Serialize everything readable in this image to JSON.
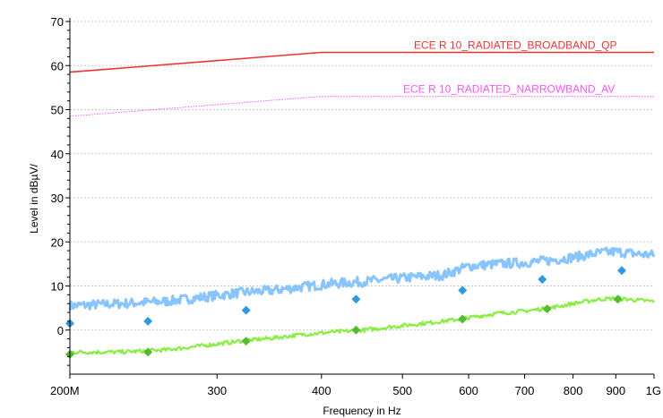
{
  "chart_data": {
    "type": "line",
    "xlabel": "Frequency in Hz",
    "ylabel": "Level in dBµV/",
    "xscale": "log",
    "xlim": [
      200000000,
      1000000000
    ],
    "ylim": [
      -10,
      70
    ],
    "x_ticks": [
      {
        "value": 200000000,
        "label": "200M"
      },
      {
        "value": 300000000,
        "label": "300"
      },
      {
        "value": 400000000,
        "label": "400"
      },
      {
        "value": 500000000,
        "label": "500"
      },
      {
        "value": 600000000,
        "label": "600"
      },
      {
        "value": 700000000,
        "label": "700"
      },
      {
        "value": 800000000,
        "label": "800"
      },
      {
        "value": 900000000,
        "label": "900"
      },
      {
        "value": 1000000000,
        "label": "1G"
      }
    ],
    "y_ticks": [
      {
        "value": 0,
        "label": "0"
      },
      {
        "value": 10,
        "label": "10"
      },
      {
        "value": 20,
        "label": "20"
      },
      {
        "value": 30,
        "label": "30"
      },
      {
        "value": 40,
        "label": "40"
      },
      {
        "value": 50,
        "label": "50"
      },
      {
        "value": 60,
        "label": "60"
      },
      {
        "value": 70,
        "label": "70"
      }
    ],
    "grid": "horizontal-dashed",
    "series": [
      {
        "name": "ECE R 10_RADIATED_BROADBAND_QP",
        "kind": "limit",
        "color": "#ee3333",
        "dashed": false,
        "x": [
          200000000,
          400000000,
          1000000000
        ],
        "y": [
          58.5,
          63,
          63
        ]
      },
      {
        "name": "ECE R 10_RADIATED_NARROWBAND_AV",
        "kind": "limit",
        "color": "#ff55ff",
        "dashed": true,
        "x": [
          200000000,
          400000000,
          1000000000
        ],
        "y": [
          48.5,
          53,
          53
        ]
      },
      {
        "kind": "trace",
        "color": "#88c4ff",
        "x": [
          200000000,
          230000000,
          260000000,
          290000000,
          320000000,
          350000000,
          380000000,
          410000000,
          450000000,
          500000000,
          560000000,
          600000000,
          650000000,
          700000000,
          750000000,
          800000000,
          860000000,
          900000000,
          950000000,
          1000000000
        ],
        "y": [
          5.5,
          6,
          6.5,
          7.5,
          8.5,
          9,
          9.8,
          10.5,
          11,
          11.8,
          12.5,
          14.5,
          15,
          15.3,
          15.8,
          16.5,
          17.5,
          17.8,
          17.3,
          17
        ]
      },
      {
        "kind": "trace",
        "color": "#88ee44",
        "x": [
          200000000,
          230000000,
          260000000,
          290000000,
          320000000,
          350000000,
          380000000,
          410000000,
          450000000,
          500000000,
          560000000,
          600000000,
          650000000,
          700000000,
          750000000,
          800000000,
          860000000,
          900000000,
          950000000,
          1000000000
        ],
        "y": [
          -5,
          -5,
          -4.5,
          -3.5,
          -2.5,
          -1.8,
          -1,
          -0.5,
          0,
          1,
          2,
          2.8,
          3.8,
          4.3,
          5,
          6,
          7,
          7.2,
          6.8,
          6.5
        ]
      },
      {
        "kind": "markers-qp",
        "marker": "diamond",
        "color": "#3399dd",
        "x": [
          200000000,
          248000000,
          325000000,
          440000000,
          590000000,
          735000000,
          915000000
        ],
        "y": [
          1.5,
          2,
          4.5,
          7,
          9,
          11.5,
          13.5
        ]
      },
      {
        "kind": "markers-av",
        "marker": "diamond",
        "color": "#55bb33",
        "x": [
          200000000,
          248000000,
          325000000,
          440000000,
          590000000,
          745000000,
          905000000
        ],
        "y": [
          -5.5,
          -5,
          -2.5,
          0,
          2.5,
          4.8,
          7
        ]
      }
    ]
  }
}
